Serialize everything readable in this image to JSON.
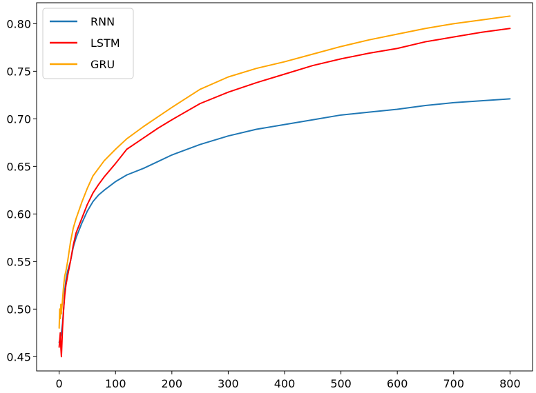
{
  "chart_data": {
    "type": "line",
    "title": "",
    "xlabel": "",
    "ylabel": "",
    "xlim": [
      -40,
      840
    ],
    "ylim": [
      0.435,
      0.822
    ],
    "grid": false,
    "legend_position": "top-left",
    "x_ticks": [
      0,
      100,
      200,
      300,
      400,
      500,
      600,
      700,
      800
    ],
    "x_tick_labels": [
      "0",
      "100",
      "200",
      "300",
      "400",
      "500",
      "600",
      "700",
      "800"
    ],
    "y_ticks": [
      0.45,
      0.5,
      0.55,
      0.6,
      0.65,
      0.7,
      0.75,
      0.8
    ],
    "y_tick_labels": [
      "0.45",
      "0.50",
      "0.55",
      "0.60",
      "0.65",
      "0.70",
      "0.75",
      "0.80"
    ],
    "series": [
      {
        "name": "RNN",
        "color": "#1f77b4",
        "x": [
          0,
          2,
          4,
          6,
          8,
          10,
          12,
          15,
          20,
          25,
          30,
          40,
          50,
          60,
          70,
          80,
          100,
          120,
          150,
          175,
          200,
          250,
          300,
          350,
          400,
          450,
          500,
          550,
          600,
          650,
          700,
          750,
          800
        ],
        "y": [
          0.465,
          0.47,
          0.475,
          0.485,
          0.5,
          0.52,
          0.53,
          0.54,
          0.55,
          0.565,
          0.575,
          0.59,
          0.603,
          0.613,
          0.62,
          0.625,
          0.634,
          0.641,
          0.648,
          0.655,
          0.662,
          0.673,
          0.682,
          0.689,
          0.694,
          0.699,
          0.704,
          0.707,
          0.71,
          0.714,
          0.717,
          0.719,
          0.721
        ]
      },
      {
        "name": "LSTM",
        "color": "#ff0000",
        "x": [
          0,
          2,
          3,
          4,
          5,
          6,
          8,
          10,
          12,
          15,
          20,
          25,
          30,
          40,
          50,
          60,
          70,
          80,
          100,
          120,
          150,
          175,
          200,
          250,
          300,
          350,
          400,
          450,
          500,
          550,
          600,
          650,
          700,
          750,
          800
        ],
        "y": [
          0.46,
          0.475,
          0.46,
          0.45,
          0.465,
          0.48,
          0.5,
          0.515,
          0.525,
          0.535,
          0.55,
          0.567,
          0.58,
          0.595,
          0.61,
          0.622,
          0.631,
          0.639,
          0.653,
          0.668,
          0.68,
          0.69,
          0.699,
          0.716,
          0.728,
          0.738,
          0.747,
          0.756,
          0.763,
          0.769,
          0.774,
          0.781,
          0.786,
          0.791,
          0.795
        ]
      },
      {
        "name": "GRU",
        "color": "#ffa500",
        "x": [
          0,
          1,
          2,
          3,
          4,
          6,
          8,
          10,
          12,
          15,
          20,
          25,
          30,
          40,
          50,
          60,
          70,
          80,
          100,
          120,
          150,
          175,
          200,
          250,
          300,
          350,
          400,
          450,
          500,
          550,
          600,
          650,
          700,
          750,
          800
        ],
        "y": [
          0.48,
          0.5,
          0.49,
          0.505,
          0.495,
          0.51,
          0.525,
          0.535,
          0.54,
          0.55,
          0.57,
          0.585,
          0.595,
          0.612,
          0.627,
          0.64,
          0.648,
          0.656,
          0.668,
          0.679,
          0.692,
          0.702,
          0.712,
          0.731,
          0.744,
          0.753,
          0.76,
          0.768,
          0.776,
          0.783,
          0.789,
          0.795,
          0.8,
          0.804,
          0.808
        ]
      }
    ]
  }
}
